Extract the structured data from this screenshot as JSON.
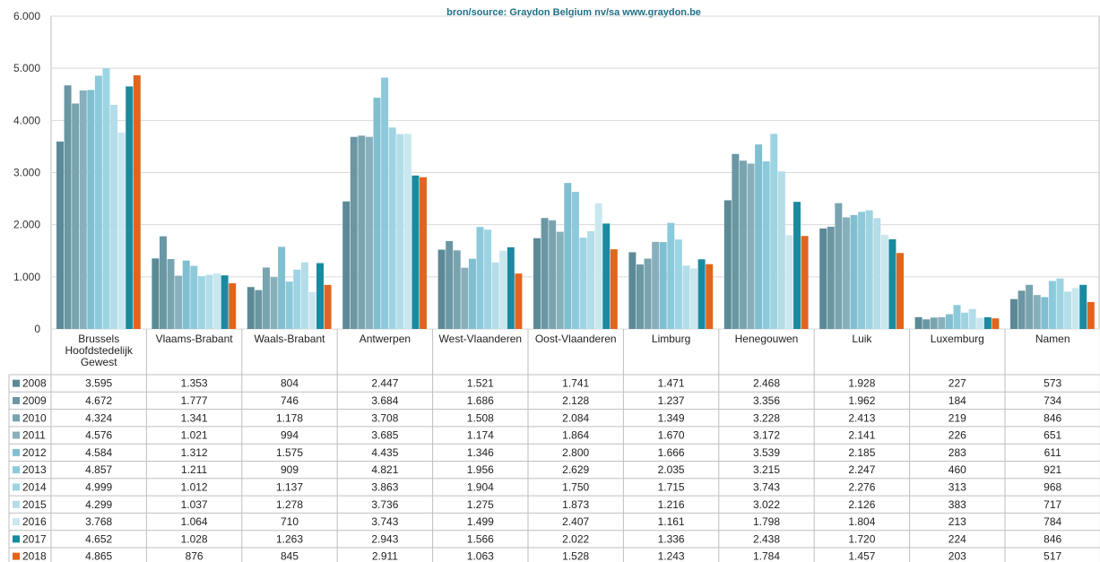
{
  "chart_data": {
    "type": "bar",
    "source": "bron/source:  Graydon Belgium nv/sa    www.graydon.be",
    "y_ticks": [
      "6.000",
      "5.000",
      "4.000",
      "3.000",
      "2.000",
      "1.000",
      "0"
    ],
    "ylim": [
      0,
      6000
    ],
    "grid": true,
    "legend_placement": "data-table-left",
    "categories": [
      "Brussels Hoofdstedelijk Gewest",
      "Vlaams-Brabant",
      "Waals-Brabant",
      "Antwerpen",
      "West-Vlaanderen",
      "Oost-Vlaanderen",
      "Limburg",
      "Henegouwen",
      "Luik",
      "Luxemburg",
      "Namen"
    ],
    "series": [
      {
        "name": "2008",
        "color": "#5b8a96",
        "values": [
          3595,
          1353,
          804,
          2447,
          1521,
          1741,
          1471,
          2468,
          1928,
          227,
          573
        ],
        "labels": [
          "3.595",
          "1.353",
          "804",
          "2.447",
          "1.521",
          "1.741",
          "1.471",
          "2.468",
          "1.928",
          "227",
          "573"
        ]
      },
      {
        "name": "2009",
        "color": "#6a97a3",
        "values": [
          4672,
          1777,
          746,
          3684,
          1686,
          2128,
          1237,
          3356,
          1962,
          184,
          734
        ],
        "labels": [
          "4.672",
          "1.777",
          "746",
          "3.684",
          "1.686",
          "2.128",
          "1.237",
          "3.356",
          "1.962",
          "184",
          "734"
        ]
      },
      {
        "name": "2010",
        "color": "#78a4b0",
        "values": [
          4324,
          1341,
          1178,
          3708,
          1508,
          2084,
          1349,
          3228,
          2413,
          219,
          846
        ],
        "labels": [
          "4.324",
          "1.341",
          "1.178",
          "3.708",
          "1.508",
          "2.084",
          "1.349",
          "3.228",
          "2.413",
          "219",
          "846"
        ]
      },
      {
        "name": "2011",
        "color": "#87b0bc",
        "values": [
          4576,
          1021,
          994,
          3685,
          1174,
          1864,
          1670,
          3172,
          2141,
          226,
          651
        ],
        "labels": [
          "4.576",
          "1.021",
          "994",
          "3.685",
          "1.174",
          "1.864",
          "1.670",
          "3.172",
          "2.141",
          "226",
          "651"
        ]
      },
      {
        "name": "2012",
        "color": "#7fbfd0",
        "values": [
          4584,
          1312,
          1575,
          4435,
          1346,
          2800,
          1666,
          3539,
          2185,
          283,
          611
        ],
        "labels": [
          "4.584",
          "1.312",
          "1.575",
          "4.435",
          "1.346",
          "2.800",
          "1.666",
          "3.539",
          "2.185",
          "283",
          "611"
        ]
      },
      {
        "name": "2013",
        "color": "#8ccadb",
        "values": [
          4857,
          1211,
          909,
          4821,
          1956,
          2629,
          2035,
          3215,
          2247,
          460,
          921
        ],
        "labels": [
          "4.857",
          "1.211",
          "909",
          "4.821",
          "1.956",
          "2.629",
          "2.035",
          "3.215",
          "2.247",
          "460",
          "921"
        ]
      },
      {
        "name": "2014",
        "color": "#9dd4e3",
        "values": [
          4999,
          1012,
          1137,
          3863,
          1904,
          1750,
          1715,
          3743,
          2276,
          313,
          968
        ],
        "labels": [
          "4.999",
          "1.012",
          "1.137",
          "3.863",
          "1.904",
          "1.750",
          "1.715",
          "3.743",
          "2.276",
          "313",
          "968"
        ]
      },
      {
        "name": "2015",
        "color": "#b3dde8",
        "values": [
          4299,
          1037,
          1278,
          3736,
          1275,
          1873,
          1216,
          3022,
          2126,
          383,
          717
        ],
        "labels": [
          "4.299",
          "1.037",
          "1.278",
          "3.736",
          "1.275",
          "1.873",
          "1.216",
          "3.022",
          "2.126",
          "383",
          "717"
        ]
      },
      {
        "name": "2016",
        "color": "#c9e7ef",
        "values": [
          3768,
          1064,
          710,
          3743,
          1499,
          2407,
          1161,
          1798,
          1804,
          213,
          784
        ],
        "labels": [
          "3.768",
          "1.064",
          "710",
          "3.743",
          "1.499",
          "2.407",
          "1.161",
          "1.798",
          "1.804",
          "213",
          "784"
        ]
      },
      {
        "name": "2017",
        "color": "#1a8aa0",
        "values": [
          4652,
          1028,
          1263,
          2943,
          1566,
          2022,
          1336,
          2438,
          1720,
          224,
          846
        ],
        "labels": [
          "4.652",
          "1.028",
          "1.263",
          "2.943",
          "1.566",
          "2.022",
          "1.336",
          "2.438",
          "1.720",
          "224",
          "846"
        ]
      },
      {
        "name": "2018",
        "color": "#e0651f",
        "values": [
          4865,
          876,
          845,
          2911,
          1063,
          1528,
          1243,
          1784,
          1457,
          203,
          517
        ],
        "labels": [
          "4.865",
          "876",
          "845",
          "2.911",
          "1.063",
          "1.528",
          "1.243",
          "1.784",
          "1.457",
          "203",
          "517"
        ]
      }
    ]
  }
}
